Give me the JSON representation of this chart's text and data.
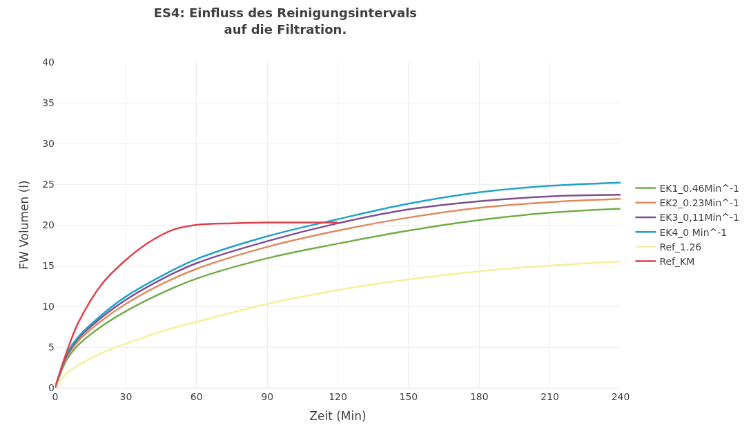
{
  "chart_data": {
    "type": "line",
    "title": "ES4: Einfluss des Reinigungsintervals\nauf die Filtration.",
    "xlabel": "Zeit (Min)",
    "ylabel": "FW Volumen (l)",
    "x": [
      0,
      5,
      10,
      20,
      30,
      45,
      60,
      90,
      120,
      150,
      180,
      210,
      240
    ],
    "series": [
      {
        "name": "EK1_0.46Min^-1",
        "color": "#70ad47",
        "values": [
          0,
          3.5,
          5.3,
          7.6,
          9.4,
          11.6,
          13.4,
          15.9,
          17.7,
          19.3,
          20.6,
          21.5,
          22.0
        ]
      },
      {
        "name": "EK2_0.23Min^-1",
        "color": "#e08a5c",
        "values": [
          0,
          3.8,
          5.8,
          8.3,
          10.3,
          12.7,
          14.6,
          17.3,
          19.3,
          20.9,
          22.1,
          22.8,
          23.2
        ]
      },
      {
        "name": "EK3_0,11Min^-1",
        "color": "#7e4f8f",
        "values": [
          0,
          4.0,
          6.1,
          8.7,
          10.8,
          13.3,
          15.3,
          18.0,
          20.2,
          21.9,
          22.9,
          23.5,
          23.7
        ]
      },
      {
        "name": "EK4_0 Min^-1",
        "color": "#1fa2c8",
        "values": [
          0,
          4.2,
          6.3,
          9.0,
          11.2,
          13.7,
          15.8,
          18.6,
          20.7,
          22.6,
          24.0,
          24.8,
          25.2
        ]
      },
      {
        "name": "Ref_1.26",
        "color": "#f2f09a",
        "values": [
          0,
          1.8,
          2.8,
          4.3,
          5.4,
          6.9,
          8.1,
          10.3,
          12.0,
          13.3,
          14.3,
          15.0,
          15.5
        ]
      },
      {
        "name": "Ref_KM",
        "color": "#e0404a",
        "x": [
          0,
          5,
          10,
          20,
          30,
          40,
          50,
          60,
          75,
          90,
          105,
          120
        ],
        "values": [
          0,
          4.5,
          8.1,
          12.8,
          15.7,
          17.9,
          19.4,
          20.0,
          20.2,
          20.3,
          20.3,
          20.3
        ]
      }
    ],
    "xlim": [
      0,
      240
    ],
    "xticks": [
      0,
      30,
      60,
      90,
      120,
      150,
      180,
      210,
      240
    ],
    "ylim": [
      0,
      40
    ],
    "yticks": [
      0,
      5,
      10,
      15,
      20,
      25,
      30,
      35,
      40
    ],
    "grid": true,
    "legend": "right"
  }
}
